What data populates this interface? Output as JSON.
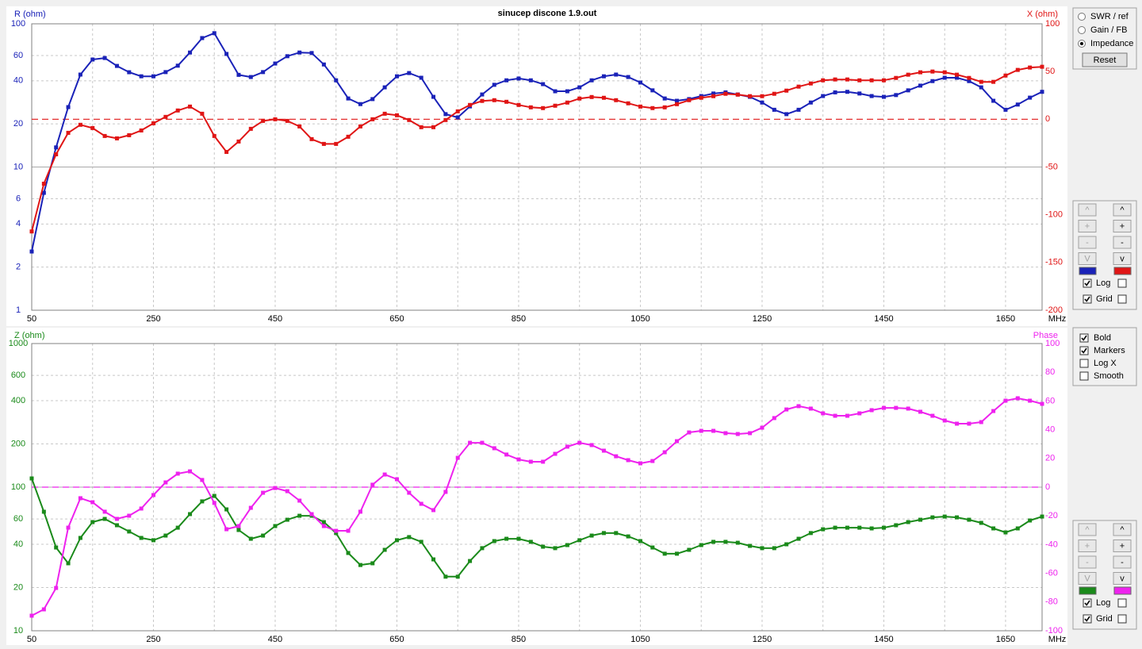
{
  "chart_data": [
    {
      "type": "line",
      "title": "sinucep discone 1.9.out",
      "ylabel": "R (ohm)",
      "y2label": "X (ohm)",
      "xlabel": "MHz",
      "x": [
        50,
        70,
        90,
        110,
        130,
        150,
        170,
        190,
        210,
        230,
        250,
        270,
        290,
        310,
        330,
        350,
        370,
        390,
        410,
        430,
        450,
        470,
        490,
        510,
        530,
        550,
        570,
        590,
        610,
        630,
        650,
        670,
        690,
        710,
        730,
        750,
        770,
        790,
        810,
        830,
        850,
        870,
        890,
        910,
        930,
        950,
        970,
        990,
        1010,
        1030,
        1050,
        1070,
        1090,
        1110,
        1130,
        1150,
        1170,
        1190,
        1210,
        1230,
        1250,
        1270,
        1290,
        1310,
        1330,
        1350,
        1370,
        1390,
        1410,
        1430,
        1450,
        1470,
        1490,
        1510,
        1530,
        1550,
        1570,
        1590,
        1610,
        1630,
        1650,
        1670,
        1690,
        1710
      ],
      "series": [
        {
          "name": "R",
          "color": "#1a22b8",
          "axis": "y",
          "values": [
            2.57,
            6.6,
            13.7,
            26.2,
            44.2,
            56.3,
            57.7,
            50.8,
            45.9,
            43,
            43,
            46,
            51,
            63,
            79.5,
            86,
            61.6,
            44,
            42.5,
            46,
            52.8,
            59.4,
            63,
            62.5,
            52,
            40.3,
            30.1,
            27.5,
            29.8,
            36,
            43,
            45.3,
            42,
            30.9,
            23.4,
            22.2,
            26.5,
            32.1,
            37.5,
            40.3,
            41.5,
            40.3,
            37.9,
            33.8,
            33.8,
            36,
            40.3,
            43,
            44.2,
            42.5,
            38.9,
            34.3,
            30.1,
            29,
            29.8,
            31.3,
            32.6,
            33.2,
            32.1,
            30.9,
            28.2,
            25.1,
            23.4,
            25.1,
            28.2,
            31.3,
            33.2,
            33.5,
            32.6,
            31.3,
            30.9,
            31.8,
            34.3,
            37,
            39.8,
            42,
            42,
            39.8,
            36,
            29,
            25.1,
            27.3,
            30.5,
            33.5
          ]
        },
        {
          "name": "X",
          "color": "#e01515",
          "axis": "y2",
          "values": [
            -117.5,
            -67.5,
            -36.7,
            -14.2,
            -5.8,
            -9.2,
            -17.5,
            -20,
            -16.7,
            -11.7,
            -4.2,
            2.5,
            9.2,
            13.3,
            5.8,
            -17.5,
            -34.2,
            -23.3,
            -10,
            -1.7,
            0,
            -1.7,
            -7.5,
            -20.8,
            -25.8,
            -25.8,
            -18.3,
            -7.5,
            0,
            5.8,
            4.2,
            -0.8,
            -8.3,
            -8.3,
            -0.8,
            8.3,
            15,
            19.2,
            20,
            18.3,
            15,
            12.5,
            11.7,
            14.2,
            17.5,
            21.7,
            23.3,
            22.5,
            20,
            16.7,
            13.3,
            11.7,
            12.5,
            15.8,
            20,
            22.5,
            24.2,
            26.7,
            25.8,
            24.2,
            24.2,
            26.7,
            30,
            34.2,
            37.5,
            40.8,
            41.7,
            41.7,
            40.8,
            40.8,
            40.8,
            43.3,
            46.7,
            49.2,
            50,
            49.2,
            46.7,
            43.3,
            39.2,
            39.2,
            45.8,
            51.7,
            54.2,
            55
          ]
        }
      ],
      "xlim": [
        50,
        1710
      ],
      "xticks": [
        50,
        250,
        450,
        650,
        850,
        1050,
        1250,
        1450,
        1650
      ],
      "ylim": [
        1,
        100
      ],
      "yticks": [
        1,
        2,
        4,
        6,
        10,
        20,
        40,
        60,
        100
      ],
      "ylog": true,
      "y2lim": [
        -200,
        100
      ],
      "y2ticks": [
        -200,
        -150,
        -100,
        -50,
        0,
        50,
        100
      ],
      "hlines": [
        {
          "axis": "y2",
          "value": 0,
          "color": "#e01515"
        }
      ],
      "grid": true,
      "markers": true
    },
    {
      "type": "line",
      "ylabel": "Z (ohm)",
      "y2label": "Phase",
      "xlabel": "MHz",
      "x": [
        50,
        70,
        90,
        110,
        130,
        150,
        170,
        190,
        210,
        230,
        250,
        270,
        290,
        310,
        330,
        350,
        370,
        390,
        410,
        430,
        450,
        470,
        490,
        510,
        530,
        550,
        570,
        590,
        610,
        630,
        650,
        670,
        690,
        710,
        730,
        750,
        770,
        790,
        810,
        830,
        850,
        870,
        890,
        910,
        930,
        950,
        970,
        990,
        1010,
        1030,
        1050,
        1070,
        1090,
        1110,
        1130,
        1150,
        1170,
        1190,
        1210,
        1230,
        1250,
        1270,
        1290,
        1310,
        1330,
        1350,
        1370,
        1390,
        1410,
        1430,
        1450,
        1470,
        1490,
        1510,
        1530,
        1550,
        1570,
        1590,
        1610,
        1630,
        1650,
        1670,
        1690,
        1710
      ],
      "series": [
        {
          "name": "Z",
          "color": "#1a8a1a",
          "axis": "y",
          "values": [
            115,
            67.4,
            38,
            29.5,
            44.3,
            57.1,
            60.1,
            54.3,
            49.1,
            44.3,
            42.7,
            46,
            52.2,
            64.9,
            79.6,
            86.9,
            70,
            50.3,
            43.7,
            46,
            53.6,
            59.3,
            63.2,
            63.2,
            57.1,
            47.9,
            34.8,
            28.7,
            29.5,
            36.6,
            42.7,
            44.9,
            41.6,
            31.4,
            23.8,
            23.8,
            30.6,
            37.6,
            42.1,
            43.7,
            43.7,
            41.6,
            38.5,
            37.6,
            39.5,
            42.7,
            46,
            47.9,
            47.9,
            45.4,
            42.1,
            38,
            34.4,
            34.4,
            36.6,
            39.5,
            41.6,
            41.6,
            41,
            39,
            37.6,
            37.6,
            40,
            43.7,
            47.9,
            50.9,
            52.2,
            52.2,
            52.2,
            51.6,
            52.2,
            54.3,
            57.1,
            59.3,
            61.6,
            62.4,
            61.6,
            59.3,
            56.4,
            51.6,
            48.4,
            51.6,
            58.6,
            62.4
          ]
        },
        {
          "name": "Phase",
          "color": "#ee22ee",
          "axis": "y2",
          "values": [
            -89.5,
            -85.1,
            -70.2,
            -28.2,
            -7.7,
            -10.5,
            -17.1,
            -22.1,
            -19.9,
            -14.9,
            -5.5,
            3.3,
            9.4,
            11,
            5,
            -11,
            -29.3,
            -27.1,
            -14.4,
            -3.9,
            -0.6,
            -2.8,
            -9.4,
            -18.8,
            -27.1,
            -30.4,
            -30.4,
            -17.1,
            1.7,
            8.8,
            5.5,
            -3.9,
            -11.6,
            -16,
            -3.3,
            20.4,
            30.9,
            30.9,
            27.1,
            22.7,
            19.3,
            17.7,
            17.7,
            23.2,
            28.2,
            30.9,
            29.3,
            25.4,
            21.5,
            18.8,
            16.6,
            18.2,
            24.3,
            32,
            38.1,
            39.2,
            39.2,
            37.6,
            37,
            37.6,
            41.4,
            48.1,
            54.1,
            56.4,
            54.7,
            51.4,
            49.7,
            49.7,
            51.4,
            53.6,
            55.2,
            55.2,
            54.7,
            52.5,
            49.7,
            46.4,
            44.2,
            44.2,
            45.3,
            53,
            60.2,
            61.9,
            60.2,
            58
          ]
        }
      ],
      "xlim": [
        50,
        1710
      ],
      "xticks": [
        50,
        250,
        450,
        650,
        850,
        1050,
        1250,
        1450,
        1650
      ],
      "ylim": [
        10,
        1000
      ],
      "yticks": [
        10,
        20,
        40,
        60,
        100,
        200,
        400,
        600,
        1000
      ],
      "ylog": true,
      "y2lim": [
        -100,
        100
      ],
      "y2ticks": [
        -100,
        -80,
        -60,
        -40,
        -20,
        0,
        20,
        40,
        60,
        80,
        100
      ],
      "hlines": [
        {
          "axis": "y2",
          "value": 0,
          "color": "#ee22ee"
        }
      ],
      "grid": true,
      "markers": true
    }
  ],
  "controls": {
    "mode": [
      {
        "label": "SWR / ref",
        "checked": false
      },
      {
        "label": "Gain / FB",
        "checked": false
      },
      {
        "label": "Impedance",
        "checked": true
      }
    ],
    "reset": "Reset",
    "scale_panels": [
      {
        "left": {
          "buttons": [
            "^",
            "+",
            "-",
            "V"
          ],
          "enabled": false
        },
        "right": {
          "buttons": [
            "^",
            "+",
            "-",
            "v"
          ],
          "enabled": true
        },
        "checks": [
          {
            "label": "Log",
            "left": true,
            "right": false
          },
          {
            "label": "Grid",
            "left": true,
            "right": false
          }
        ]
      },
      {
        "left": {
          "buttons": [
            "^",
            "+",
            "-",
            "V"
          ],
          "enabled": false
        },
        "right": {
          "buttons": [
            "^",
            "+",
            "-",
            "v"
          ],
          "enabled": true
        },
        "checks": [
          {
            "label": "Log",
            "left": true,
            "right": false
          },
          {
            "label": "Grid",
            "left": true,
            "right": false
          }
        ]
      }
    ],
    "options": [
      {
        "label": "Bold",
        "checked": true
      },
      {
        "label": "Markers",
        "checked": true
      },
      {
        "label": "Log X",
        "checked": false
      },
      {
        "label": "Smooth",
        "checked": false
      }
    ]
  }
}
